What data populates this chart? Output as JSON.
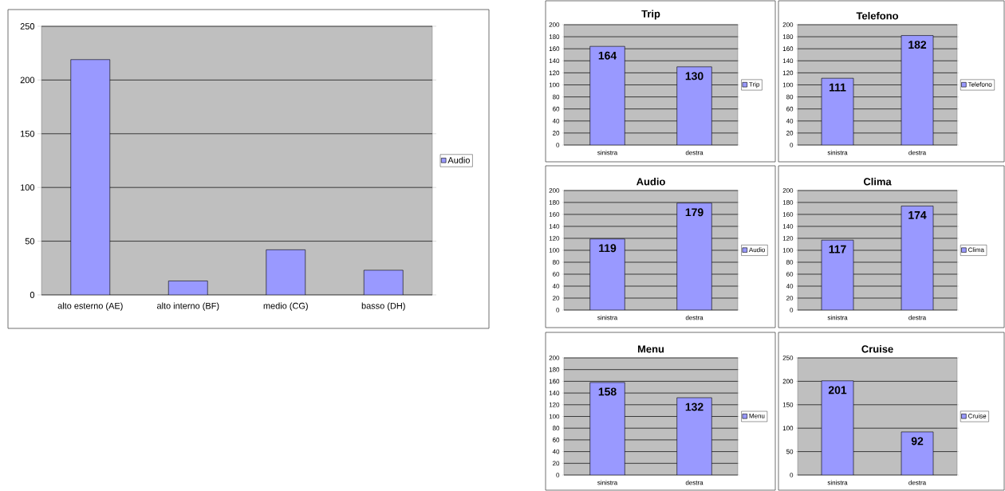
{
  "chart_data": [
    {
      "type": "bar",
      "categories": [
        "alto esterno (AE)",
        "alto interno (BF)",
        "medio (CG)",
        "basso (DH)"
      ],
      "series": [
        {
          "name": "Audio",
          "color": "#9999ff",
          "values": [
            219,
            13,
            42,
            23
          ]
        }
      ],
      "ylim": [
        0,
        250
      ],
      "yticks": [
        0,
        50,
        100,
        150,
        200,
        250
      ],
      "grid": "y",
      "legend": "right"
    },
    {
      "type": "bar",
      "title": "Trip",
      "categories": [
        "sinistra",
        "destra"
      ],
      "series": [
        {
          "name": "Trip",
          "color": "#9999ff",
          "values": [
            164,
            130
          ]
        }
      ],
      "ylim": [
        0,
        200
      ],
      "yticks": [
        0,
        20,
        40,
        60,
        80,
        100,
        120,
        140,
        160,
        180,
        200
      ],
      "grid": "y",
      "legend": "right",
      "data_labels": true
    },
    {
      "type": "bar",
      "title": "Telefono",
      "categories": [
        "sinistra",
        "destra"
      ],
      "series": [
        {
          "name": "Telefono",
          "color": "#9999ff",
          "values": [
            111,
            182
          ]
        }
      ],
      "ylim": [
        0,
        200
      ],
      "yticks": [
        0,
        20,
        40,
        60,
        80,
        100,
        120,
        140,
        160,
        180,
        200
      ],
      "grid": "y",
      "legend": "right",
      "data_labels": true
    },
    {
      "type": "bar",
      "title": "Audio",
      "categories": [
        "sinistra",
        "destra"
      ],
      "series": [
        {
          "name": "Audio",
          "color": "#9999ff",
          "values": [
            119,
            179
          ]
        }
      ],
      "ylim": [
        0,
        200
      ],
      "yticks": [
        0,
        20,
        40,
        60,
        80,
        100,
        120,
        140,
        160,
        180,
        200
      ],
      "grid": "y",
      "legend": "right",
      "data_labels": true
    },
    {
      "type": "bar",
      "title": "Clima",
      "categories": [
        "sinistra",
        "destra"
      ],
      "series": [
        {
          "name": "Clima",
          "color": "#9999ff",
          "values": [
            117,
            174
          ]
        }
      ],
      "ylim": [
        0,
        200
      ],
      "yticks": [
        0,
        20,
        40,
        60,
        80,
        100,
        120,
        140,
        160,
        180,
        200
      ],
      "grid": "y",
      "legend": "right",
      "data_labels": true
    },
    {
      "type": "bar",
      "title": "Menu",
      "categories": [
        "sinistra",
        "destra"
      ],
      "series": [
        {
          "name": "Menu",
          "color": "#9999ff",
          "values": [
            158,
            132
          ]
        }
      ],
      "ylim": [
        0,
        200
      ],
      "yticks": [
        0,
        20,
        40,
        60,
        80,
        100,
        120,
        140,
        160,
        180,
        200
      ],
      "grid": "y",
      "legend": "right",
      "data_labels": true
    },
    {
      "type": "bar",
      "title": "Cruise",
      "categories": [
        "sinistra",
        "destra"
      ],
      "series": [
        {
          "name": "Cruise",
          "color": "#9999ff",
          "values": [
            201,
            92
          ]
        }
      ],
      "ylim": [
        0,
        250
      ],
      "yticks": [
        0,
        50,
        100,
        150,
        200,
        250
      ],
      "grid": "y",
      "legend": "right",
      "data_labels": true
    }
  ]
}
